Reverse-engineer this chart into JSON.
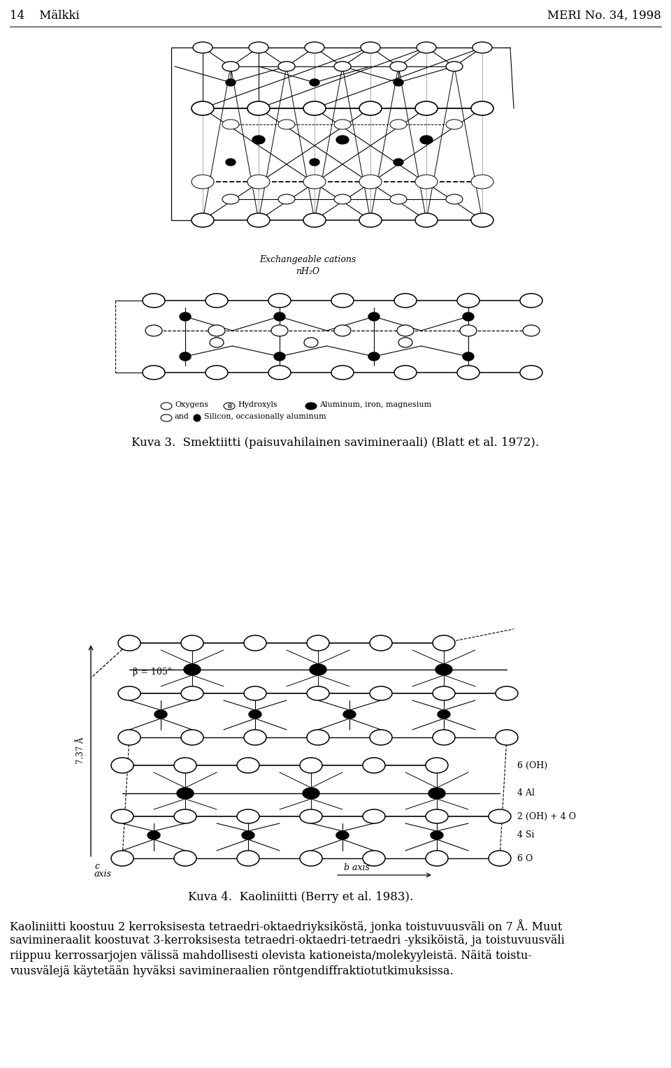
{
  "header_left": "14    Mälkki",
  "header_right": "MERI No. 34, 1998",
  "caption3": "Kuva 3.  Smektiitti (paisuvahilainen savimineraali) (Blatt et al. 1972).",
  "caption4": "Kuva 4.  Kaoliniitti (Berry et al. 1983).",
  "body_line1": "Kaoliniitti koostuu 2 kerroksisesta tetraedri-oktaedriyksiköstä, jonka toistuvuusväli on 7 Å. Muut",
  "body_line2": "savimineraalit koostuvat 3-kerroksisesta tetraedri-oktaedri-tetraedri -yksiköistä, ja toistuvuusväli",
  "body_line3": "riippuu kerrossarjojen välissä mahdollisesti olevista kationeista/molekyyleistä. Näitä toistu-",
  "body_line4": "vuusvälejä käytetään hyväksi savimineraalien röntgendiffraktiotutkimuksissa.",
  "fig_width": 9.6,
  "fig_height": 15.28,
  "dpi": 100
}
